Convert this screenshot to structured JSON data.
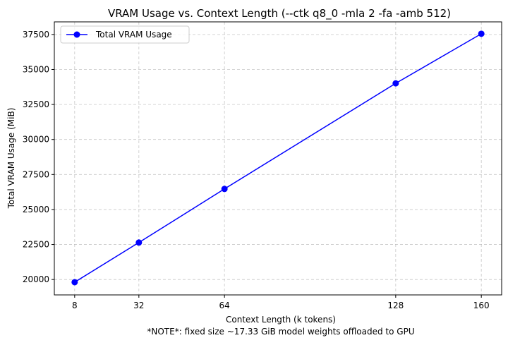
{
  "chart_data": {
    "type": "line",
    "title": "VRAM Usage vs. Context Length (--ctk q8_0 -mla 2 -fa -amb 512)",
    "xlabel": "Context Length (k tokens)",
    "ylabel": "Total VRAM Usage (MiB)",
    "note": "*NOTE*: fixed size ~17.33 GiB model weights offloaded to GPU",
    "x": [
      8,
      32,
      64,
      128,
      160
    ],
    "x_tick_labels": [
      "8",
      "32",
      "64",
      "128",
      "160"
    ],
    "y_ticks": [
      20000,
      22500,
      25000,
      27500,
      30000,
      32500,
      35000,
      37500
    ],
    "y_tick_labels": [
      "20000",
      "22500",
      "25000",
      "27500",
      "30000",
      "32500",
      "35000",
      "37500"
    ],
    "xlim": [
      0.4,
      167.6
    ],
    "ylim": [
      18900,
      38400
    ],
    "grid": true,
    "legend_position": "top-left",
    "series": [
      {
        "name": "Total VRAM Usage",
        "color": "#0000ff",
        "marker": "circle",
        "values": [
          19810,
          22640,
          26470,
          34010,
          37550
        ]
      }
    ]
  }
}
